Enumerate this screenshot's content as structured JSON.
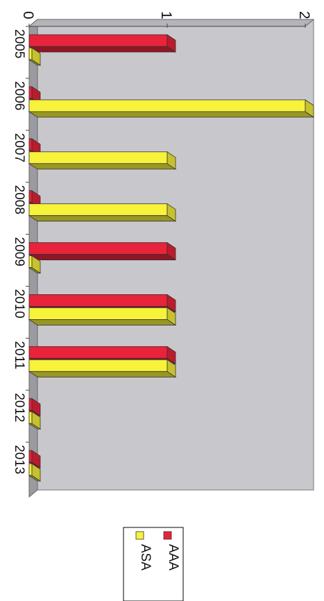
{
  "chart_data": {
    "type": "bar",
    "orientation": "horizontal-3d-rotated",
    "categories": [
      "2005",
      "2006",
      "2007",
      "2008",
      "2009",
      "2010",
      "2011",
      "2012",
      "2013"
    ],
    "series": [
      {
        "name": "AAA",
        "values": [
          1,
          0,
          0,
          0,
          1,
          1,
          1,
          0,
          0
        ],
        "color": "#e8233a"
      },
      {
        "name": "ASA",
        "values": [
          0,
          2,
          1,
          1,
          0,
          1,
          1,
          0,
          0
        ],
        "color": "#f7f23a"
      }
    ],
    "ylim": [
      0,
      2
    ],
    "yticks": [
      "0",
      "1",
      "2"
    ],
    "grid": false,
    "legend_position": "bottom",
    "plot_wall_color": "#c8c8cc",
    "plot_floor_color": "#9a9aa0"
  }
}
